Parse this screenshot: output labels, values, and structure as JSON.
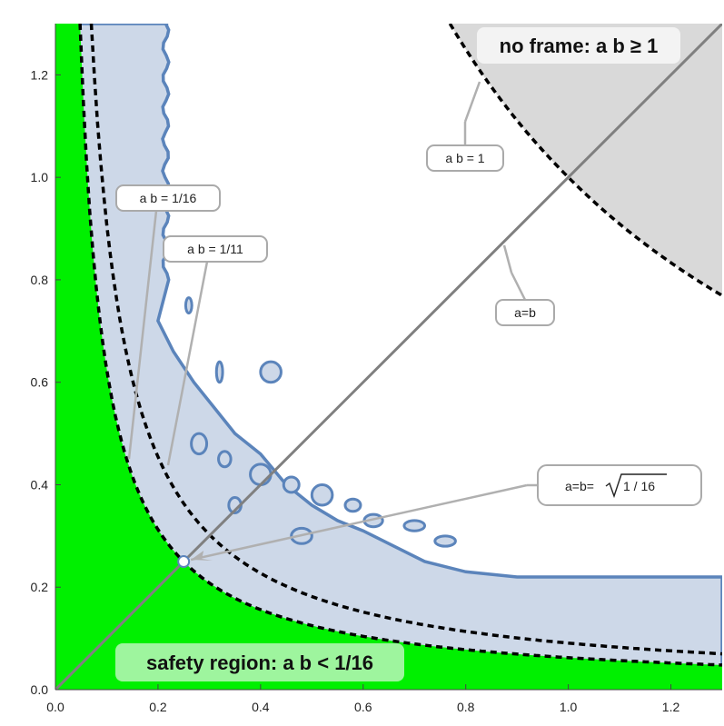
{
  "chart_data": {
    "type": "area",
    "xlim": [
      0,
      1.3
    ],
    "ylim": [
      0,
      1.3
    ],
    "x_ticks": [
      "0.0",
      "0.2",
      "0.4",
      "0.6",
      "0.8",
      "1.0",
      "1.2"
    ],
    "y_ticks": [
      "0.0",
      "0.2",
      "0.4",
      "0.6",
      "0.8",
      "1.0",
      "1.2"
    ],
    "curves": [
      {
        "name": "a b = 1/16",
        "product": 0.0625,
        "style": "dashed"
      },
      {
        "name": "a b = 1/11",
        "product": 0.0909,
        "style": "dashed"
      },
      {
        "name": "a b = 1",
        "product": 1,
        "style": "dashed"
      },
      {
        "name": "a=b",
        "style": "solid"
      }
    ],
    "point": {
      "label_prefix": "a=b=",
      "label_radicand": "1 / 16",
      "x": 0.25,
      "y": 0.25
    },
    "regions": {
      "safety": "safety region: a b < 1/16",
      "no_frame": "no frame: a b ≥ 1"
    },
    "annotations": {
      "ab_1_16": "a b = 1/16",
      "ab_1_11": "a b = 1/11",
      "ab_1": "a b = 1",
      "diag": "a=b"
    },
    "colors": {
      "safety": "#00f000",
      "noframe": "#d9d9d9",
      "blue_fill": "#cdd8e8",
      "blue_edge": "#5b84bb",
      "diag": "#808080"
    }
  }
}
